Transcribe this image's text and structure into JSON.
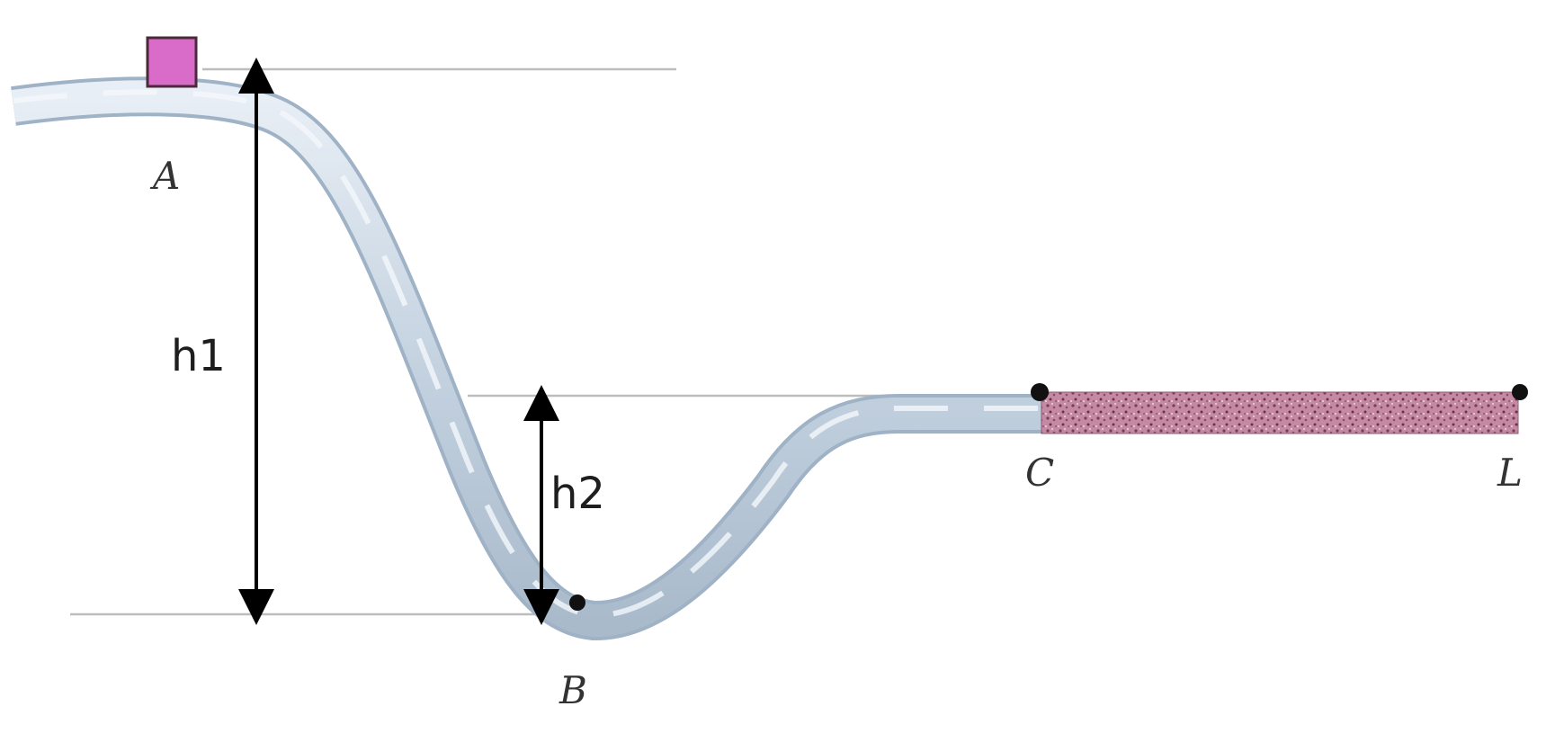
{
  "points": {
    "a": "A",
    "b": "B",
    "c": "C",
    "end": "L"
  },
  "heights": {
    "h1": "h1",
    "h2": "h2"
  },
  "colors": {
    "track_fill": "#c9d6e4",
    "track_edge": "#9fb2c6",
    "block_fill": "#d86cc8",
    "block_edge": "#4a2a3a",
    "rough_surface": "#c48aa3",
    "rough_speckle": "#7a3b55",
    "guide_line": "#bdbdbd",
    "arrow": "#000000"
  },
  "icons": {
    "block": "sliding-block",
    "track": "curved-track",
    "rough_section": "rough-surface-patch"
  }
}
